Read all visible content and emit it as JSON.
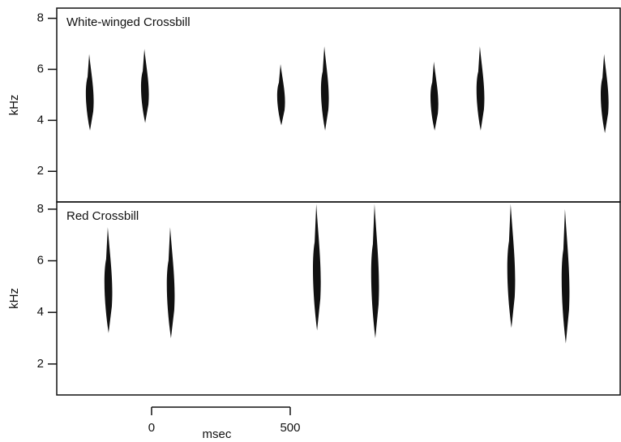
{
  "chart_data": [
    {
      "type": "spectrogram",
      "title": "White-winged Crossbill",
      "ylabel": "kHz",
      "color": "#111111",
      "xlim": [
        -342,
        1693
      ],
      "ylim": [
        0.8,
        8.4
      ],
      "yticks": [
        2,
        4,
        6,
        8
      ],
      "notes": {
        "t": [
          -225,
          -26,
          465,
          623,
          1018,
          1184,
          1632
        ],
        "low": [
          3.6,
          3.9,
          3.8,
          3.6,
          3.6,
          3.6,
          3.5
        ],
        "high": [
          6.6,
          6.8,
          6.2,
          6.9,
          6.3,
          6.9,
          6.6
        ]
      }
    },
    {
      "type": "spectrogram",
      "title": "Red Crossbill",
      "ylabel": "kHz",
      "xlabel": "msec",
      "color": "#111111",
      "xlim": [
        -342,
        1693
      ],
      "ylim": [
        0.8,
        8.28
      ],
      "yticks": [
        2,
        4,
        6,
        8
      ],
      "xticks": [
        0,
        500
      ],
      "notes": {
        "t": [
          -158,
          67,
          594,
          804,
          1295,
          1491
        ],
        "low": [
          3.2,
          3.0,
          3.3,
          3.0,
          3.4,
          2.8
        ],
        "high": [
          7.3,
          7.3,
          8.2,
          8.2,
          8.2,
          8.0
        ]
      }
    }
  ]
}
